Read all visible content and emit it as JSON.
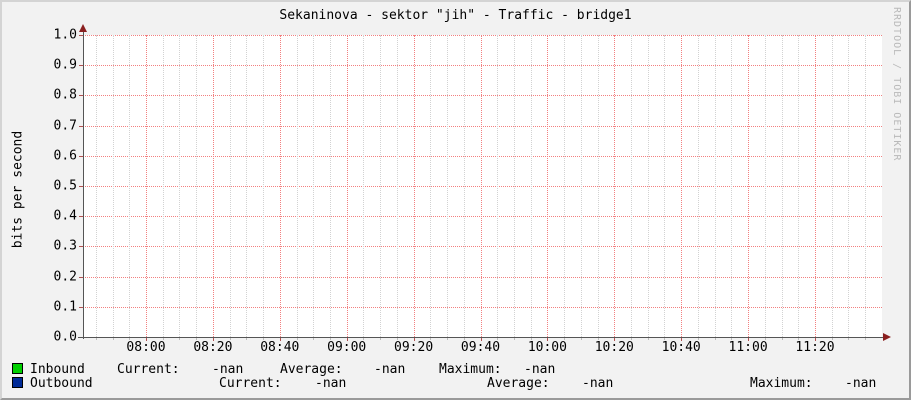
{
  "watermark": "RRDTOOL / TOBI OETIKER",
  "chart_data": {
    "type": "line",
    "title": "Sekaninova - sektor \"jih\" - Traffic - bridge1",
    "xlabel": "",
    "ylabel": "bits per second",
    "ylim": [
      0.0,
      1.0
    ],
    "y_ticks": [
      "1.0",
      "0.9",
      "0.8",
      "0.7",
      "0.6",
      "0.5",
      "0.4",
      "0.3",
      "0.2",
      "0.1",
      "0.0"
    ],
    "x_ticks": [
      "08:00",
      "08:20",
      "08:40",
      "09:00",
      "09:20",
      "09:40",
      "10:00",
      "10:20",
      "10:40",
      "11:00",
      "11:20"
    ],
    "grid": {
      "visible": true,
      "minors_per_major": 4
    },
    "legend_position": "bottom",
    "series": [
      {
        "name": "Inbound",
        "color": "#00cf00",
        "x": [],
        "values": [],
        "note": "no data plotted (all values -nan)"
      },
      {
        "name": "Outbound",
        "color": "#002a97",
        "x": [],
        "values": [],
        "note": "no data plotted (all values -nan)"
      }
    ]
  },
  "legend": {
    "rows": [
      {
        "name": "Inbound",
        "swatch_color": "#00cf00",
        "items": [
          {
            "label": "Current:",
            "value": "-nan"
          },
          {
            "label": "Average:",
            "value": "-nan"
          },
          {
            "label": "Maximum:",
            "value": "-nan"
          }
        ]
      },
      {
        "name": "Outbound",
        "swatch_color": "#002a97",
        "items": [
          {
            "label": "Current:",
            "value": "-nan"
          },
          {
            "label": "Average:",
            "value": "-nan"
          },
          {
            "label": "Maximum:",
            "value": "-nan"
          }
        ]
      }
    ]
  },
  "colors": {
    "background": "#f2f2f2",
    "canvas": "#ffffff",
    "major_grid": "#f28080",
    "minor_grid": "#d2d2d2",
    "major_tick": "#b05050",
    "minor_tick": "#bbbbbb",
    "axis": "#555555",
    "arrow": "#8b2020",
    "watermark_text": "#b9b9b9"
  }
}
